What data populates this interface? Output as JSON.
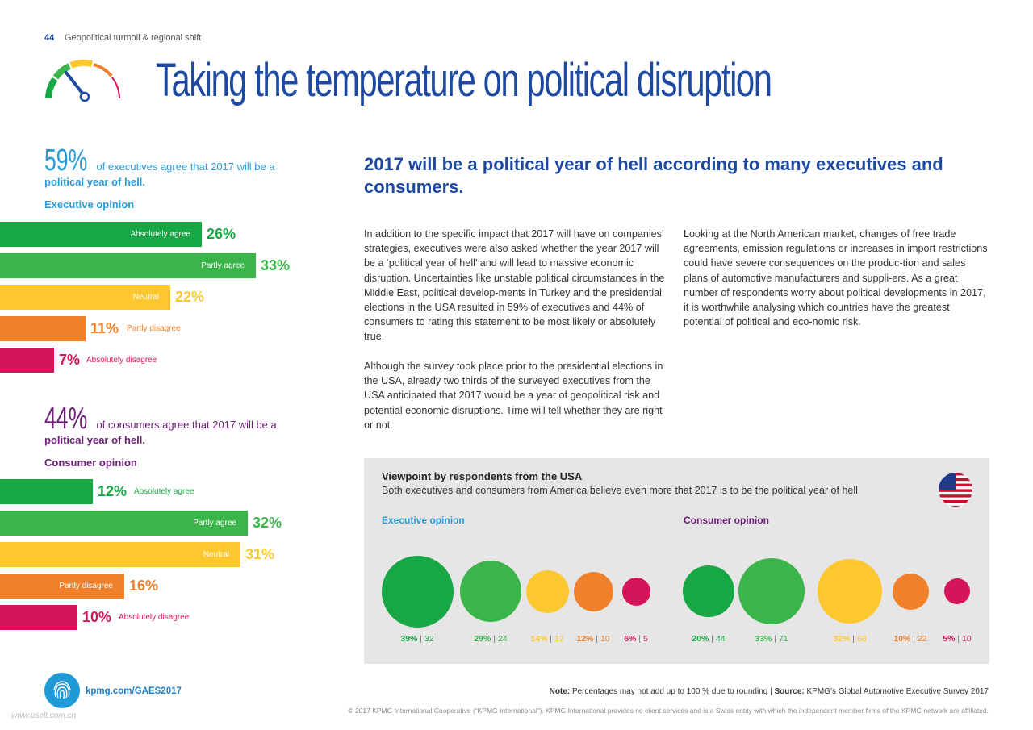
{
  "header": {
    "page_number": "44",
    "section": "Geopolitical turmoil & regional shift",
    "title": "Taking the temperature on political disruption"
  },
  "colors": {
    "green_dark": "#17a845",
    "green": "#3ab54a",
    "yellow": "#fdc82f",
    "orange": "#f0812a",
    "magenta": "#d6145a",
    "blue_title": "#1e49a0",
    "cyan": "#2a9bd6",
    "purple": "#6d2077"
  },
  "executives": {
    "percent": "59%",
    "text_rest": "of executives agree that 2017 will be a",
    "text_bold": "political year of hell.",
    "label": "Executive opinion",
    "bars": [
      {
        "label": "Absolutely agree",
        "value": 26,
        "value_text": "26%"
      },
      {
        "label": "Partly agree",
        "value": 33,
        "value_text": "33%"
      },
      {
        "label": "Neutral",
        "value": 22,
        "value_text": "22%"
      },
      {
        "label": "Partly disagree",
        "value": 11,
        "value_text": "11%"
      },
      {
        "label": "Absolutely disagree",
        "value": 7,
        "value_text": "7%"
      }
    ]
  },
  "consumers": {
    "percent": "44%",
    "text_rest": "of consumers agree that 2017 will be a",
    "text_bold": "political year of hell.",
    "label": "Consumer opinion",
    "bars": [
      {
        "label": "Absolutely agree",
        "value": 12,
        "value_text": "12%"
      },
      {
        "label": "Partly agree",
        "value": 32,
        "value_text": "32%"
      },
      {
        "label": "Neutral",
        "value": 31,
        "value_text": "31%"
      },
      {
        "label": "Partly disagree",
        "value": 16,
        "value_text": "16%"
      },
      {
        "label": "Absolutely disagree",
        "value": 10,
        "value_text": "10%"
      }
    ]
  },
  "article": {
    "headline": "2017 will be a political year of hell according to many executives and consumers.",
    "col1_p1": "In addition to the specific impact that 2017 will have on companies’ strategies, executives were also asked whether the year 2017 will be a ‘political year of hell’ and will lead to massive economic disruption. Uncertainties like unstable political circumstances in the Middle East, political develop-ments in Turkey and the presidential elections in the USA resulted in 59% of executives and 44% of consumers to rating this statement to be most likely or absolutely true.",
    "col1_p2": "Although the survey took place prior to the presidential elections in the USA, already two thirds of the surveyed executives from the USA anticipated that 2017 would be a year of geopolitical risk and potential economic disruptions. Time will tell whether they are right or not.",
    "col2_p1": "Looking at the North American market, changes of free trade agreements, emission regulations or increases in import restrictions could have severe consequences on the produc-tion and sales plans of automotive manufacturers and suppli-ers. As a great number of respondents worry about political developments in 2017, it is worthwhile analysing which countries have the greatest potential of political and eco-nomic risk."
  },
  "usa_panel": {
    "title": "Viewpoint by respondents from the USA",
    "subtitle": "Both executives and consumers from America believe even more that 2017 is to be the political year of hell",
    "flag_icon": "usa-flag-icon",
    "executive_label": "Executive opinion",
    "consumer_label": "Consumer opinion",
    "executive_circles": [
      {
        "pct": "39%",
        "n": "32",
        "value": 39,
        "color": "#17a845"
      },
      {
        "pct": "29%",
        "n": "24",
        "value": 29,
        "color": "#3ab54a"
      },
      {
        "pct": "14%",
        "n": "12",
        "value": 14,
        "color": "#fdc82f"
      },
      {
        "pct": "12%",
        "n": "10",
        "value": 12,
        "color": "#f0812a"
      },
      {
        "pct": "6%",
        "n": "5",
        "value": 6,
        "color": "#d6145a"
      }
    ],
    "consumer_circles": [
      {
        "pct": "20%",
        "n": "44",
        "value": 20,
        "color": "#17a845"
      },
      {
        "pct": "33%",
        "n": "71",
        "value": 33,
        "color": "#3ab54a"
      },
      {
        "pct": "32%",
        "n": "68",
        "value": 32,
        "color": "#fdc82f"
      },
      {
        "pct": "10%",
        "n": "22",
        "value": 10,
        "color": "#f0812a"
      },
      {
        "pct": "5%",
        "n": "10",
        "value": 5,
        "color": "#d6145a"
      }
    ]
  },
  "footer": {
    "url": "kpmg.com/GAES2017",
    "note_label": "Note:",
    "note_text": "Percentages may not add up to 100 % due to rounding |",
    "source_label": "Source:",
    "source_text": "KPMG’s Global Automotive Executive Survey 2017",
    "copyright": "© 2017 KPMG International Cooperative (“KPMG International”). KPMG International provides no client services and is a Swiss entity with which the independent member firms of the KPMG network are affiliated.",
    "watermark": "www.uselt.com.cn"
  }
}
